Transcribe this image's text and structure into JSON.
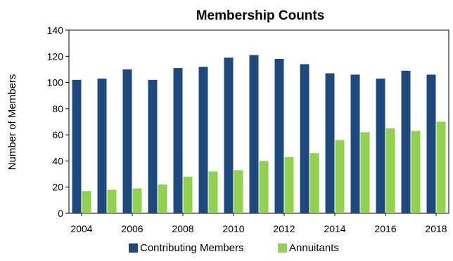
{
  "chart_data": {
    "type": "bar",
    "title": "Membership Counts",
    "xlabel": "",
    "ylabel": "Number of Members",
    "ylim": [
      0,
      140
    ],
    "yticks": [
      0,
      20,
      40,
      60,
      80,
      100,
      120,
      140
    ],
    "categories": [
      "2004",
      "2005",
      "2006",
      "2007",
      "2008",
      "2009",
      "2010",
      "2011",
      "2012",
      "2013",
      "2014",
      "2015",
      "2016",
      "2017",
      "2018"
    ],
    "xtick_labels": [
      "2004",
      "2006",
      "2008",
      "2010",
      "2012",
      "2014",
      "2016",
      "2018"
    ],
    "series": [
      {
        "name": "Contributing Members",
        "color": "#1F497D",
        "values": [
          102,
          103,
          110,
          102,
          111,
          112,
          119,
          121,
          118,
          114,
          107,
          106,
          103,
          109,
          106
        ]
      },
      {
        "name": "Annuitants",
        "color": "#92D050",
        "values": [
          17,
          18,
          19,
          22,
          28,
          32,
          33,
          40,
          43,
          46,
          56,
          62,
          65,
          63,
          70
        ]
      }
    ],
    "grid": false,
    "legend_position": "bottom"
  }
}
